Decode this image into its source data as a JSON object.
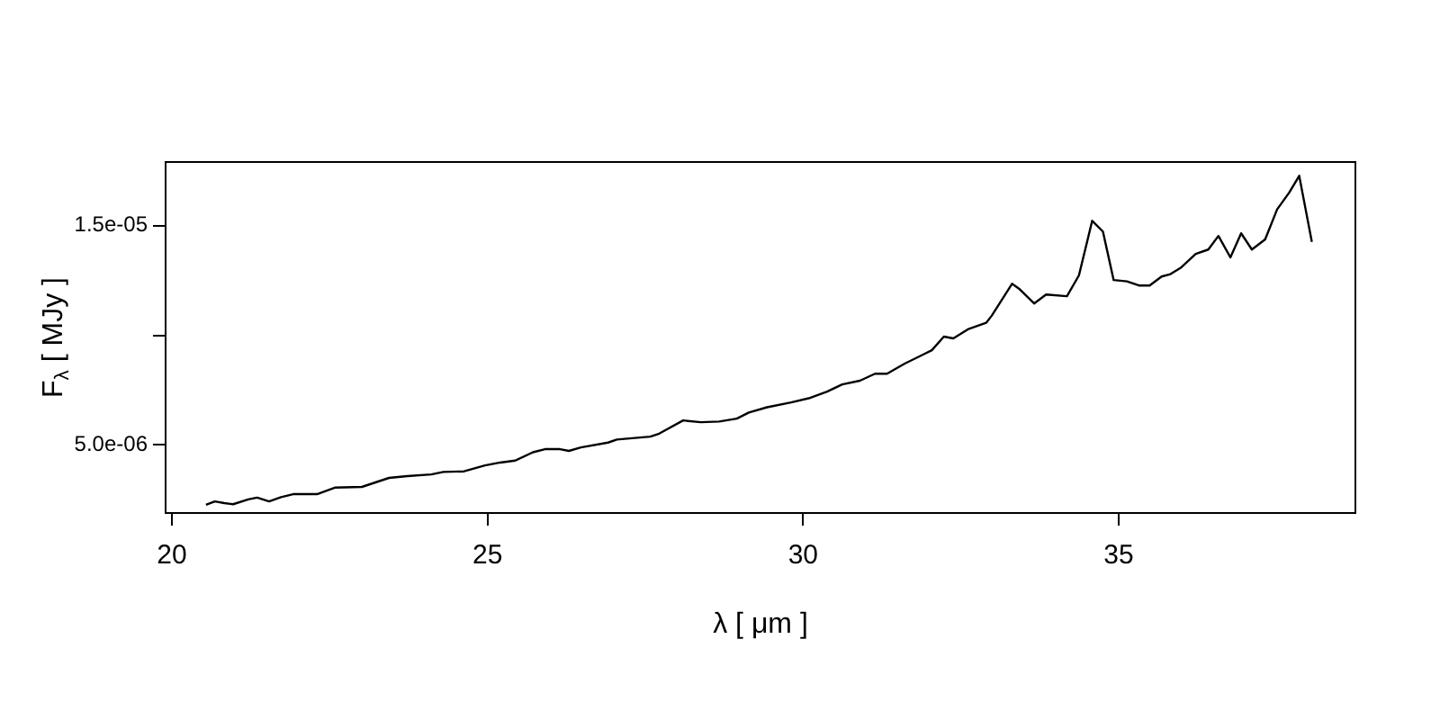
{
  "chart_data": {
    "type": "line",
    "xlabel": "λ [ μm ]",
    "ylabel": "F$_{λ}$ [ MJy ]",
    "series": [
      {
        "color": "#000000",
        "x": [
          20.54,
          20.68,
          20.83,
          20.97,
          21.21,
          21.35,
          21.54,
          21.73,
          21.92,
          22.3,
          22.59,
          23.01,
          23.44,
          23.73,
          24.11,
          24.3,
          24.63,
          24.96,
          25.2,
          25.44,
          25.72,
          25.91,
          26.15,
          26.29,
          26.48,
          26.91,
          27.05,
          27.58,
          27.72,
          28.1,
          28.38,
          28.67,
          28.95,
          29.14,
          29.43,
          29.81,
          30.09,
          30.38,
          30.62,
          30.9,
          31.14,
          31.33,
          31.61,
          31.9,
          32.04,
          32.23,
          32.38,
          32.61,
          32.9,
          32.99,
          33.31,
          33.42,
          33.66,
          33.85,
          34.18,
          34.37,
          34.58,
          34.75,
          34.92,
          35.13,
          35.32,
          35.49,
          35.68,
          35.82,
          35.99,
          36.22,
          36.42,
          36.58,
          36.77,
          36.94,
          37.11,
          37.32,
          37.51,
          37.7,
          37.86,
          38.06
        ],
        "values": [
          2.27e-06,
          2.43e-06,
          2.35e-06,
          2.3e-06,
          2.52e-06,
          2.6e-06,
          2.43e-06,
          2.62e-06,
          2.76e-06,
          2.76e-06,
          3.06e-06,
          3.09e-06,
          3.5e-06,
          3.58e-06,
          3.66e-06,
          3.77e-06,
          3.8e-06,
          4.07e-06,
          4.2e-06,
          4.29e-06,
          4.67e-06,
          4.81e-06,
          4.81e-06,
          4.73e-06,
          4.89e-06,
          5.11e-06,
          5.25e-06,
          5.38e-06,
          5.52e-06,
          6.12e-06,
          6.04e-06,
          6.07e-06,
          6.2e-06,
          6.48e-06,
          6.72e-06,
          6.94e-06,
          7.13e-06,
          7.43e-06,
          7.76e-06,
          7.93e-06,
          8.25e-06,
          8.25e-06,
          8.71e-06,
          9.12e-06,
          9.32e-06,
          9.94e-06,
          9.86e-06,
          1.027e-05,
          1.057e-05,
          1.09e-05,
          1.235e-05,
          1.213e-05,
          1.145e-05,
          1.186e-05,
          1.178e-05,
          1.273e-05,
          1.522e-05,
          1.473e-05,
          1.252e-05,
          1.246e-05,
          1.227e-05,
          1.227e-05,
          1.268e-05,
          1.279e-05,
          1.309e-05,
          1.371e-05,
          1.391e-05,
          1.453e-05,
          1.355e-05,
          1.465e-05,
          1.391e-05,
          1.437e-05,
          1.574e-05,
          1.65e-05,
          1.727e-05,
          1.426e-05
        ]
      }
    ],
    "xlim": [
      19.9,
      38.75
    ],
    "xticks": [
      20,
      25,
      30,
      35
    ],
    "ylim": [
      1.9e-06,
      1.79e-05
    ],
    "yticks": [
      {
        "value": 5e-06,
        "label": "5.0e-06"
      },
      {
        "value": 1e-05,
        "label": null
      },
      {
        "value": 1.5e-05,
        "label": "1.5e-05"
      }
    ],
    "grid": false,
    "legend": false,
    "marker": "none",
    "line_style": "solid"
  }
}
